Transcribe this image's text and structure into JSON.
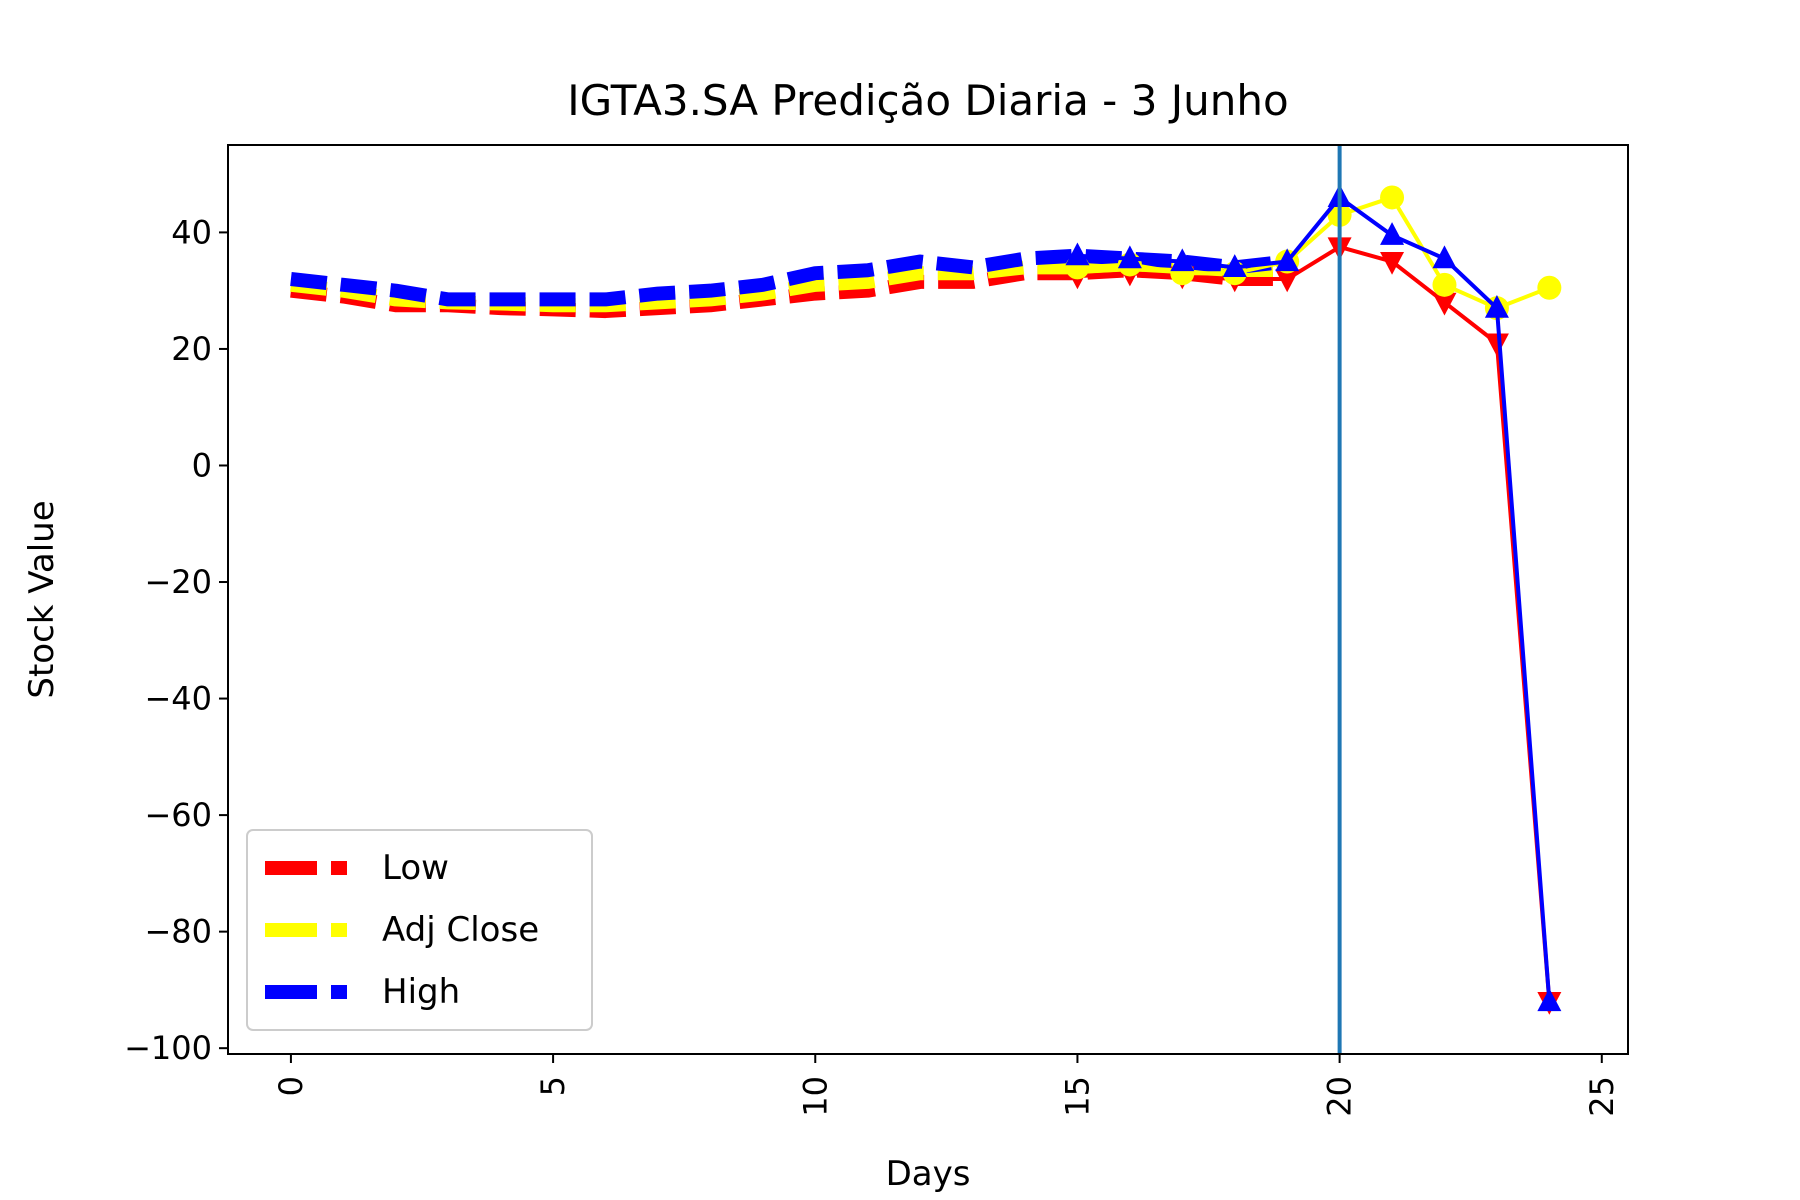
{
  "chart_data": {
    "type": "line",
    "title": "IGTA3.SA Predição Diaria - 3 Junho",
    "xlabel": "Days",
    "ylabel": "Stock Value",
    "xlim": [
      -1.2,
      25.5
    ],
    "ylim": [
      -101,
      55
    ],
    "xticks": [
      0,
      5,
      10,
      15,
      20,
      25
    ],
    "yticks": [
      -100,
      -80,
      -60,
      -40,
      -20,
      0,
      20,
      40
    ],
    "ytick_labels": [
      "−100",
      "−80",
      "−60",
      "−40",
      "−20",
      "0",
      "20",
      "40"
    ],
    "vline": {
      "x": 20,
      "color": "#1f77b4"
    },
    "legend": {
      "placement": "lower-left"
    },
    "series": [
      {
        "name": "Low",
        "color": "#ff0000",
        "marker": "triangle-down",
        "history_x": [
          0,
          1,
          2,
          3,
          4,
          5,
          6,
          7,
          8,
          9,
          10,
          11,
          12,
          13,
          14,
          15,
          16,
          17,
          18,
          19
        ],
        "history_y": [
          30,
          29,
          27.5,
          27.5,
          27,
          26.8,
          26.5,
          27,
          27.5,
          28.5,
          29.5,
          30,
          31.5,
          31.5,
          33,
          33,
          33.5,
          33,
          32,
          32
        ],
        "predict_x": [
          15,
          16,
          17,
          18,
          19,
          20,
          21,
          22,
          23,
          24
        ],
        "predict_y": [
          32.5,
          33,
          32.5,
          32,
          32,
          37.5,
          35,
          28,
          21,
          -92
        ]
      },
      {
        "name": "Adj Close",
        "color": "#ffff00",
        "marker": "circle",
        "history_x": [
          0,
          1,
          2,
          3,
          4,
          5,
          6,
          7,
          8,
          9,
          10,
          11,
          12,
          13,
          14,
          15,
          16,
          17,
          18,
          19
        ],
        "history_y": [
          31,
          30,
          28.5,
          28,
          27.8,
          27.5,
          27.5,
          28,
          28.5,
          29.5,
          31,
          31.5,
          33,
          33,
          34,
          34,
          34.5,
          34,
          33,
          33
        ],
        "predict_x": [
          15,
          16,
          17,
          18,
          19,
          20,
          21,
          22,
          23,
          24
        ],
        "predict_y": [
          34,
          34.5,
          33,
          33,
          35,
          43,
          46,
          31,
          27,
          30.5
        ]
      },
      {
        "name": "High",
        "color": "#0000ff",
        "marker": "triangle-up",
        "history_x": [
          0,
          1,
          2,
          3,
          4,
          5,
          6,
          7,
          8,
          9,
          10,
          11,
          12,
          13,
          14,
          15,
          16,
          17,
          18,
          19
        ],
        "history_y": [
          32,
          31,
          30,
          28.5,
          28.5,
          28.5,
          28.5,
          29.5,
          30,
          31,
          33,
          33.5,
          35,
          34,
          35.5,
          36,
          35.5,
          35,
          34,
          35
        ],
        "predict_x": [
          15,
          16,
          17,
          18,
          19,
          20,
          21,
          22,
          23,
          24
        ],
        "predict_y": [
          36,
          35.5,
          35,
          34,
          35,
          46,
          39.5,
          35.5,
          27,
          -92
        ]
      }
    ]
  }
}
